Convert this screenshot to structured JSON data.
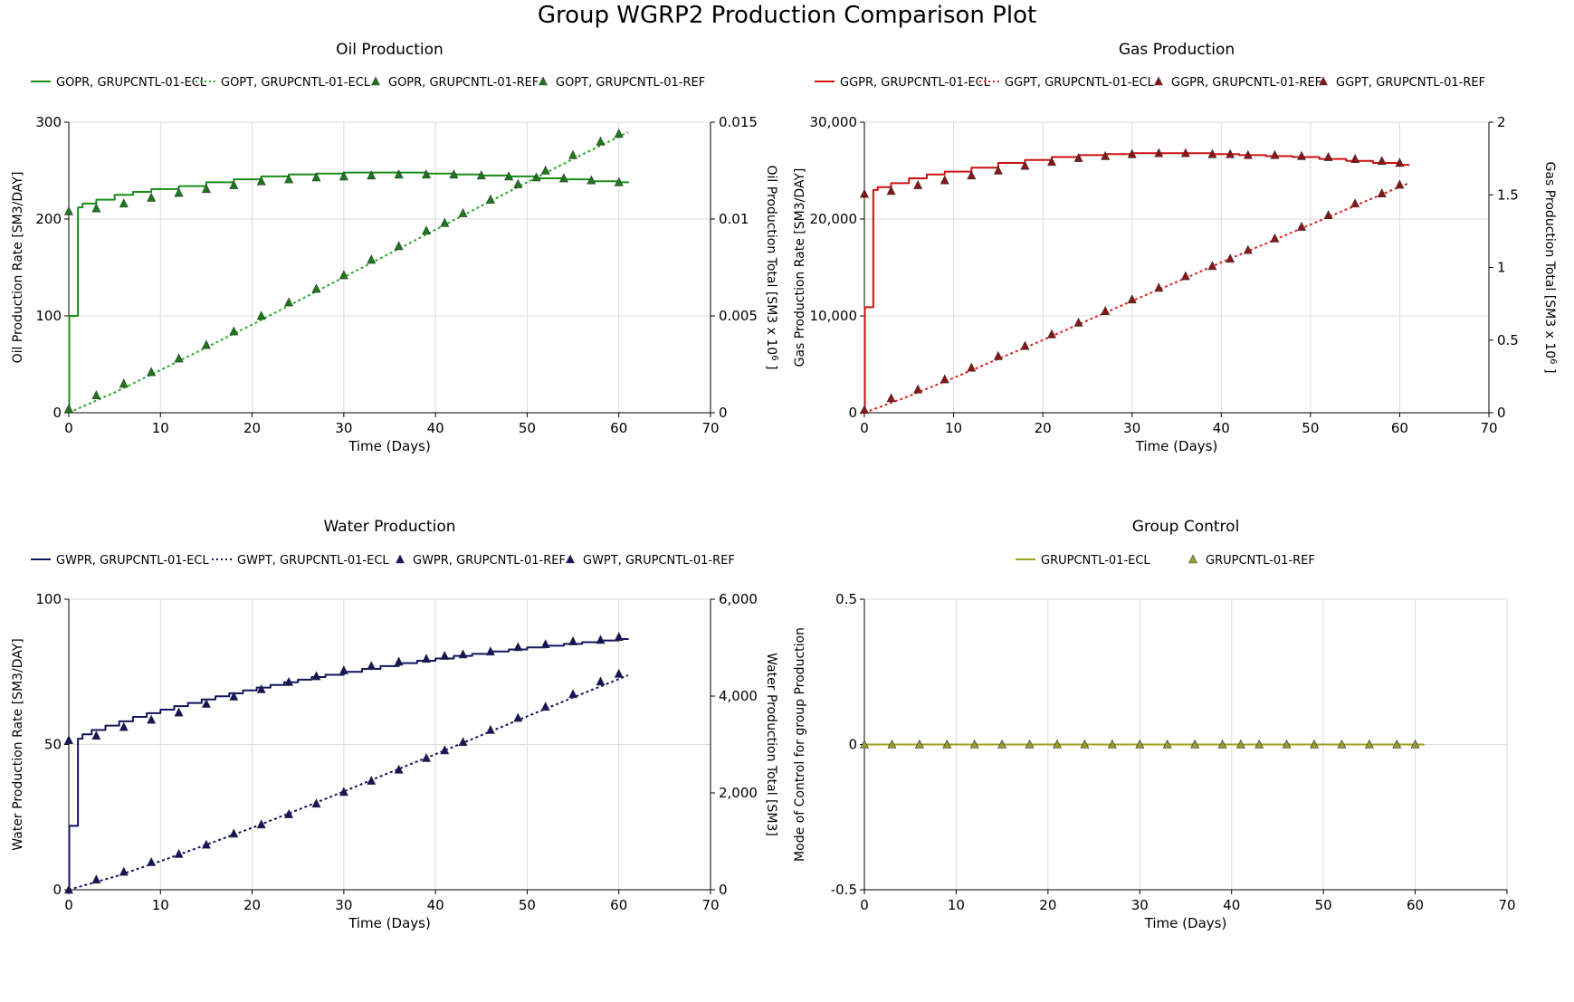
{
  "page_title": "Group WGRP2 Production Comparison Plot",
  "chart_data": [
    {
      "id": "oil",
      "type": "line",
      "title": "Oil Production",
      "xlabel": "Time (Days)",
      "ylabel_left": "Oil Production Rate [SM3/DAY]",
      "ylabel_right": "Oil Production Total [SM3 x 10",
      "ylabel_right_sup": "6",
      "ylabel_right_tail": " ]",
      "xlim": [
        0,
        70
      ],
      "xticks": [
        0,
        10,
        20,
        30,
        40,
        50,
        60,
        70
      ],
      "ylim_left": [
        0,
        300
      ],
      "yticks_left": [
        0,
        100,
        200,
        300
      ],
      "yticklabels_left": [
        "0",
        "100",
        "200",
        "300"
      ],
      "ylim_right": [
        0,
        0.015
      ],
      "yticks_right": [
        0,
        0.005,
        0.01,
        0.015
      ],
      "yticklabels_right": [
        "0",
        "0.005",
        "0.01",
        "0.015"
      ],
      "grid": true,
      "legend_position": "top",
      "series": [
        {
          "name": "GOPR, GRUPCNTL-01-ECL",
          "axis": "left",
          "style": "solid",
          "step": true,
          "color": "#1a8c1a",
          "x": [
            0,
            0.05,
            1,
            1.5,
            3,
            5,
            7,
            9,
            12,
            15,
            18,
            21,
            24,
            27,
            30,
            33,
            36,
            39,
            42,
            45,
            48,
            51,
            54,
            57,
            60,
            61
          ],
          "y": [
            0,
            100,
            212,
            216,
            220,
            225,
            228,
            231,
            234,
            238,
            241,
            244,
            246,
            247,
            248,
            248,
            248,
            247,
            246,
            245,
            244,
            242,
            241,
            239,
            238,
            237
          ]
        },
        {
          "name": "GOPT, GRUPCNTL-01-ECL",
          "axis": "right",
          "style": "dotted",
          "color": "#2ea82e",
          "x": [
            0,
            5,
            10,
            15,
            20,
            25,
            30,
            35,
            40,
            45,
            50,
            55,
            60,
            61
          ],
          "y": [
            0,
            0.00105,
            0.0022,
            0.00337,
            0.00455,
            0.00577,
            0.007,
            0.00822,
            0.00945,
            0.01068,
            0.0119,
            0.0131,
            0.01425,
            0.01448
          ]
        },
        {
          "name": "GOPR, GRUPCNTL-01-REF",
          "axis": "left",
          "style": "marker",
          "color": "#1a7a1a",
          "x": [
            0,
            3,
            6,
            9,
            12,
            15,
            18,
            21,
            24,
            27,
            30,
            33,
            36,
            39,
            42,
            45,
            48,
            51,
            54,
            57,
            60
          ],
          "y": [
            208,
            211,
            216,
            222,
            227,
            231,
            235,
            239,
            241,
            243,
            244,
            245,
            246,
            246,
            246,
            245,
            244,
            243,
            242,
            240,
            238
          ]
        },
        {
          "name": "GOPT, GRUPCNTL-01-REF",
          "axis": "right",
          "style": "marker",
          "color": "#1a7a1a",
          "x": [
            0,
            3,
            6,
            9,
            12,
            15,
            18,
            21,
            24,
            27,
            30,
            33,
            36,
            39,
            41,
            43,
            46,
            49,
            52,
            55,
            58,
            60
          ],
          "y": [
            0.0002,
            0.0009,
            0.0015,
            0.0021,
            0.0028,
            0.0035,
            0.0042,
            0.005,
            0.0057,
            0.0064,
            0.0071,
            0.0079,
            0.0086,
            0.0094,
            0.0098,
            0.0103,
            0.011,
            0.0118,
            0.0125,
            0.0133,
            0.014,
            0.0144
          ]
        }
      ]
    },
    {
      "id": "gas",
      "type": "line",
      "title": "Gas Production",
      "xlabel": "Time (Days)",
      "ylabel_left": "Gas Production Rate [SM3/DAY]",
      "ylabel_right": "Gas Production Total [SM3 x 10",
      "ylabel_right_sup": "6",
      "ylabel_right_tail": " ]",
      "xlim": [
        0,
        70
      ],
      "xticks": [
        0,
        10,
        20,
        30,
        40,
        50,
        60,
        70
      ],
      "ylim_left": [
        0,
        30000
      ],
      "yticks_left": [
        0,
        10000,
        20000,
        30000
      ],
      "yticklabels_left": [
        "0",
        "10,000",
        "20,000",
        "30,000"
      ],
      "ylim_right": [
        0,
        2
      ],
      "yticks_right": [
        0,
        0.5,
        1,
        1.5,
        2
      ],
      "yticklabels_right": [
        "0",
        "0.5",
        "1",
        "1.5",
        "2"
      ],
      "grid": true,
      "legend_position": "top",
      "series": [
        {
          "name": "GGPR, GRUPCNTL-01-ECL",
          "axis": "left",
          "style": "solid",
          "step": true,
          "color": "#cc1111",
          "x": [
            0,
            0.05,
            1,
            1.5,
            3,
            5,
            7,
            9,
            12,
            15,
            18,
            21,
            24,
            27,
            30,
            33,
            36,
            39,
            42,
            45,
            48,
            51,
            54,
            57,
            60,
            61
          ],
          "y": [
            0,
            10900,
            23000,
            23300,
            23700,
            24200,
            24600,
            24900,
            25300,
            25800,
            26100,
            26400,
            26600,
            26700,
            26800,
            26800,
            26800,
            26700,
            26600,
            26500,
            26400,
            26200,
            26000,
            25800,
            25600,
            25500
          ]
        },
        {
          "name": "GGPT, GRUPCNTL-01-ECL",
          "axis": "right",
          "style": "dotted",
          "color": "#dd2222",
          "x": [
            0,
            5,
            10,
            15,
            20,
            25,
            30,
            35,
            40,
            45,
            50,
            55,
            60,
            61
          ],
          "y": [
            0,
            0.115,
            0.24,
            0.37,
            0.5,
            0.635,
            0.77,
            0.9,
            1.035,
            1.165,
            1.295,
            1.425,
            1.555,
            1.58
          ]
        },
        {
          "name": "GGPR, GRUPCNTL-01-REF",
          "axis": "left",
          "style": "marker",
          "color": "#8b1515",
          "x": [
            0,
            3,
            6,
            9,
            12,
            15,
            18,
            21,
            24,
            27,
            30,
            33,
            36,
            39,
            41,
            43,
            46,
            49,
            52,
            55,
            58,
            60
          ],
          "y": [
            22600,
            22900,
            23500,
            24000,
            24500,
            25000,
            25500,
            25900,
            26300,
            26500,
            26700,
            26800,
            26800,
            26700,
            26700,
            26600,
            26600,
            26500,
            26400,
            26200,
            26000,
            25800
          ]
        },
        {
          "name": "GGPT, GRUPCNTL-01-REF",
          "axis": "right",
          "style": "marker",
          "color": "#8b1515",
          "x": [
            0,
            3,
            6,
            9,
            12,
            15,
            18,
            21,
            24,
            27,
            30,
            33,
            36,
            39,
            41,
            43,
            46,
            49,
            52,
            55,
            58,
            60
          ],
          "y": [
            0.02,
            0.1,
            0.16,
            0.23,
            0.31,
            0.39,
            0.46,
            0.54,
            0.62,
            0.7,
            0.78,
            0.86,
            0.94,
            1.01,
            1.06,
            1.12,
            1.2,
            1.28,
            1.36,
            1.44,
            1.51,
            1.57
          ]
        }
      ]
    },
    {
      "id": "water",
      "type": "line",
      "title": "Water Production",
      "xlabel": "Time (Days)",
      "ylabel_left": "Water Production Rate [SM3/DAY]",
      "ylabel_right": "Water Production Total [SM3]",
      "ylabel_right_sup": "",
      "ylabel_right_tail": "",
      "xlim": [
        0,
        70
      ],
      "xticks": [
        0,
        10,
        20,
        30,
        40,
        50,
        60,
        70
      ],
      "ylim_left": [
        0,
        100
      ],
      "yticks_left": [
        0,
        50,
        100
      ],
      "yticklabels_left": [
        "0",
        "50",
        "100"
      ],
      "ylim_right": [
        0,
        6000
      ],
      "yticks_right": [
        0,
        2000,
        4000,
        6000
      ],
      "yticklabels_right": [
        "0",
        "2,000",
        "4,000",
        "6,000"
      ],
      "grid": true,
      "legend_position": "top",
      "series": [
        {
          "name": "GWPR, GRUPCNTL-01-ECL",
          "axis": "left",
          "style": "solid",
          "step": true,
          "color": "#14145e",
          "x": [
            0,
            0.05,
            1,
            1.5,
            2.5,
            4,
            5.5,
            7,
            8.5,
            10,
            11.5,
            13,
            14.5,
            16,
            17.5,
            19,
            20.5,
            22,
            23.5,
            25,
            26.5,
            28,
            30,
            32,
            34,
            36,
            38,
            40,
            42,
            44,
            46,
            48,
            50,
            52,
            54,
            56,
            58,
            60,
            61
          ],
          "y": [
            0,
            22,
            52,
            53.5,
            55,
            56.5,
            58,
            59.5,
            60.8,
            62,
            63.2,
            64.3,
            65.5,
            66.6,
            67.6,
            68.6,
            69.6,
            70.5,
            71.4,
            72.3,
            73.2,
            74,
            75,
            76,
            77,
            78,
            78.8,
            79.6,
            80.5,
            81.2,
            82,
            82.7,
            83.4,
            84,
            84.6,
            85.2,
            85.8,
            86.3,
            86.5
          ]
        },
        {
          "name": "GWPT, GRUPCNTL-01-ECL",
          "axis": "right",
          "style": "dotted",
          "color": "#14145e",
          "x": [
            0,
            5,
            10,
            15,
            20,
            25,
            30,
            35,
            40,
            45,
            50,
            55,
            60,
            61
          ],
          "y": [
            0,
            270,
            590,
            930,
            1280,
            1650,
            2030,
            2420,
            2800,
            3190,
            3580,
            3970,
            4350,
            4430
          ]
        },
        {
          "name": "GWPR, GRUPCNTL-01-REF",
          "axis": "left",
          "style": "marker",
          "color": "#14145e",
          "x": [
            0,
            3,
            6,
            9,
            12,
            15,
            18,
            21,
            24,
            27,
            30,
            33,
            36,
            39,
            41,
            43,
            46,
            49,
            52,
            55,
            58,
            60
          ],
          "y": [
            51.5,
            53,
            56,
            58.5,
            61,
            64,
            66.5,
            69,
            71.5,
            73.5,
            75.5,
            77,
            78.5,
            79.5,
            80.5,
            81,
            82,
            83.5,
            84.5,
            85.5,
            86,
            87
          ]
        },
        {
          "name": "GWPT, GRUPCNTL-01-REF",
          "axis": "right",
          "style": "marker",
          "color": "#14145e",
          "x": [
            0,
            3,
            6,
            9,
            12,
            15,
            18,
            21,
            24,
            27,
            30,
            33,
            36,
            39,
            41,
            43,
            46,
            49,
            52,
            55,
            58,
            60
          ],
          "y": [
            0,
            210,
            370,
            570,
            740,
            930,
            1160,
            1350,
            1560,
            1780,
            2020,
            2250,
            2480,
            2720,
            2880,
            3050,
            3300,
            3550,
            3780,
            4040,
            4300,
            4460
          ]
        }
      ]
    },
    {
      "id": "control",
      "type": "line",
      "title": "Group Control",
      "xlabel": "Time (Days)",
      "ylabel_left": "Mode of Control for group Production",
      "ylabel_right": "",
      "ylabel_right_sup": "",
      "ylabel_right_tail": "",
      "xlim": [
        0,
        70
      ],
      "xticks": [
        0,
        10,
        20,
        30,
        40,
        50,
        60,
        70
      ],
      "ylim_left": [
        -0.5,
        0.5
      ],
      "yticks_left": [
        -0.5,
        0,
        0.5
      ],
      "yticklabels_left": [
        "-0.5",
        "0",
        "0.5"
      ],
      "grid": true,
      "legend_position": "top",
      "series": [
        {
          "name": "GRUPCNTL-01-ECL",
          "axis": "left",
          "style": "solid",
          "step": false,
          "color": "#a0a020",
          "x": [
            0,
            61
          ],
          "y": [
            0,
            0
          ]
        },
        {
          "name": "GRUPCNTL-01-REF",
          "axis": "left",
          "style": "marker",
          "color": "#9a9a30",
          "x": [
            0,
            3,
            6,
            9,
            12,
            15,
            18,
            21,
            24,
            27,
            30,
            33,
            36,
            39,
            41,
            43,
            46,
            49,
            52,
            55,
            58,
            60
          ],
          "y": [
            0,
            0,
            0,
            0,
            0,
            0,
            0,
            0,
            0,
            0,
            0,
            0,
            0,
            0,
            0,
            0,
            0,
            0,
            0,
            0,
            0,
            0
          ]
        }
      ]
    }
  ]
}
